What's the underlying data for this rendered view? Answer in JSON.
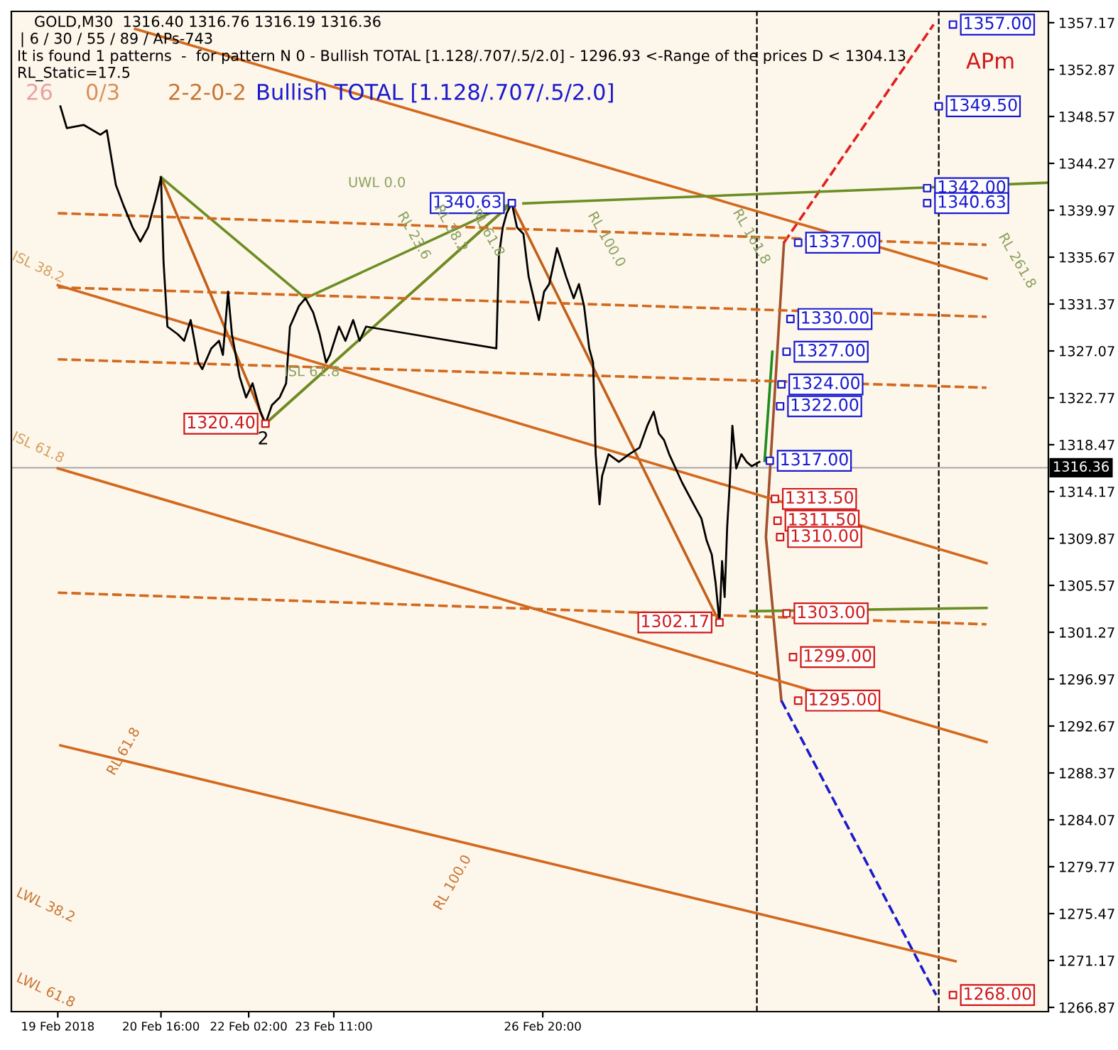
{
  "chart_data": {
    "type": "line",
    "xlim": [
      "2018-02-18T06:00",
      "2018-03-07T00:00"
    ],
    "ylim": [
      1266.48,
      1358.21
    ],
    "xticks": [
      {
        "value": "2018-02-19T00:00",
        "label": "19 Feb 2018"
      },
      {
        "value": "2018-02-20T16:00",
        "label": "20 Feb 16:00"
      },
      {
        "value": "2018-02-22T02:00",
        "label": "22 Feb 02:00"
      },
      {
        "value": "2018-02-23T11:00",
        "label": "23 Feb 11:00"
      },
      {
        "value": "2018-02-26T20:00",
        "label": "26 Feb 20:00"
      }
    ],
    "yticks": [
      1357.17,
      1352.87,
      1348.57,
      1344.27,
      1339.97,
      1335.67,
      1331.37,
      1327.07,
      1322.77,
      1318.47,
      1314.17,
      1309.87,
      1305.57,
      1301.27,
      1296.97,
      1292.67,
      1288.37,
      1284.07,
      1279.77,
      1275.47,
      1271.17,
      1266.87
    ],
    "series": [
      {
        "color": "#000000",
        "line_style": "solid",
        "x": [
          "2018-02-19T01:00",
          "2018-02-19T03:30",
          "2018-02-19T10:00",
          "2018-02-19T16:30",
          "2018-02-19T19:00",
          "2018-02-19T22:30",
          "2018-02-20T01:30",
          "2018-02-20T05:00",
          "2018-02-20T08:00",
          "2018-02-20T11:00",
          "2018-02-20T14:00",
          "2018-02-20T16:00",
          "2018-02-20T17:00",
          "2018-02-20T18:30",
          "2018-02-20T22:30",
          "2018-02-21T01:00",
          "2018-02-21T03:30",
          "2018-02-21T06:30",
          "2018-02-21T08:00",
          "2018-02-21T11:30",
          "2018-02-21T14:30",
          "2018-02-21T16:00",
          "2018-02-21T18:00",
          "2018-02-21T19:30",
          "2018-02-21T22:30",
          "2018-02-22T01:00",
          "2018-02-22T03:30",
          "2018-02-22T06:30",
          "2018-02-22T08:30",
          "2018-02-22T11:00",
          "2018-02-22T14:00",
          "2018-02-22T16:30",
          "2018-02-22T18:00",
          "2018-02-22T21:30",
          "2018-02-23T00:00",
          "2018-02-23T03:00",
          "2018-02-23T05:30",
          "2018-02-23T08:00",
          "2018-02-23T09:30",
          "2018-02-23T13:00",
          "2018-02-23T15:30",
          "2018-02-23T18:30",
          "2018-02-23T21:00",
          "2018-02-23T23:30",
          "2018-02-26T02:00",
          "2018-02-26T03:00",
          "2018-02-26T04:30",
          "2018-02-26T06:00",
          "2018-02-26T08:00",
          "2018-02-26T10:00",
          "2018-02-26T12:30",
          "2018-02-26T14:30",
          "2018-02-26T16:30",
          "2018-02-26T18:30",
          "2018-02-26T20:30",
          "2018-02-26T22:30",
          "2018-02-27T01:30",
          "2018-02-27T02:30",
          "2018-02-27T05:00",
          "2018-02-27T08:00",
          "2018-02-27T10:00",
          "2018-02-27T12:00",
          "2018-02-27T14:00",
          "2018-02-27T15:30",
          "2018-02-27T16:30",
          "2018-02-27T18:00",
          "2018-02-27T19:00",
          "2018-02-27T21:30",
          "2018-02-28T01:30",
          "2018-02-28T05:30",
          "2018-02-28T09:30",
          "2018-02-28T12:30",
          "2018-02-28T15:00",
          "2018-02-28T17:00",
          "2018-02-28T19:00",
          "2018-02-28T21:00",
          "2018-02-28T23:30",
          "2018-03-01T02:00",
          "2018-03-01T06:30",
          "2018-03-01T09:30",
          "2018-03-01T11:30",
          "2018-03-01T13:30",
          "2018-03-01T15:00",
          "2018-03-01T16:30",
          "2018-03-01T17:30",
          "2018-03-01T18:30",
          "2018-03-01T19:30",
          "2018-03-01T20:30",
          "2018-03-01T21:30",
          "2018-03-01T23:00",
          "2018-03-02T01:00",
          "2018-03-02T03:00",
          "2018-03-02T05:00",
          "2018-03-02T08:00"
        ],
        "values": [
          1349.5,
          1347.5,
          1347.8,
          1346.9,
          1347.3,
          1342.3,
          1340.4,
          1338.4,
          1337.1,
          1338.4,
          1341.0,
          1343.0,
          1335.2,
          1329.3,
          1328.6,
          1328.0,
          1329.9,
          1326.0,
          1325.4,
          1327.3,
          1328.0,
          1326.7,
          1332.5,
          1328.6,
          1324.7,
          1322.8,
          1324.1,
          1321.5,
          1320.4,
          1322.1,
          1322.8,
          1324.1,
          1329.3,
          1331.2,
          1331.9,
          1330.6,
          1328.6,
          1326.0,
          1326.7,
          1329.3,
          1328.0,
          1329.9,
          1328.0,
          1329.3,
          1327.3,
          1335.8,
          1338.4,
          1339.7,
          1340.63,
          1338.4,
          1337.8,
          1333.9,
          1331.9,
          1329.9,
          1332.5,
          1333.2,
          1336.5,
          1335.8,
          1333.9,
          1331.9,
          1333.2,
          1331.2,
          1327.3,
          1326.0,
          1317.6,
          1313.0,
          1315.6,
          1317.6,
          1316.9,
          1317.6,
          1318.2,
          1320.2,
          1321.5,
          1319.5,
          1318.9,
          1317.6,
          1316.3,
          1315.0,
          1313.0,
          1311.7,
          1309.7,
          1308.4,
          1305.8,
          1302.17,
          1307.8,
          1304.5,
          1311.0,
          1315.0,
          1320.2,
          1316.3,
          1317.6,
          1316.9,
          1316.5,
          1316.9
        ]
      },
      {
        "color": "#c0601a",
        "line_style": "solid",
        "x": [
          "2018-02-20T16:00",
          "2018-02-22T08:30",
          "2018-02-26T08:00",
          "2018-03-01T16:30"
        ],
        "values": [
          1343.0,
          1320.4,
          1340.63,
          1302.17
        ]
      },
      {
        "color": "#6b8e23",
        "line_style": "solid",
        "x": [
          "2018-02-20T16:00",
          "2018-02-23T00:00",
          "2018-02-26T08:00"
        ],
        "values": [
          1343.0,
          1331.9,
          1340.63
        ]
      },
      {
        "color": "#6b8e23",
        "line_style": "solid",
        "x": [
          "2018-02-22T08:30",
          "2018-02-26T08:00"
        ],
        "values": [
          1320.4,
          1340.63
        ]
      },
      {
        "color": "#a0522d",
        "line_style": "solid",
        "x": [
          "2018-03-02T16:30",
          "2018-03-02T10:30",
          "2018-03-02T17:30"
        ],
        "values": [
          1295.0,
          1310.0,
          1337.0
        ]
      },
      {
        "color": "#e02020",
        "line_style": "dashed",
        "x": [
          "2018-03-02T17:30",
          "2018-03-05T03:30"
        ],
        "values": [
          1337.0,
          1357.0
        ]
      },
      {
        "color": "#1a1acd",
        "line_style": "dashed",
        "x": [
          "2018-03-02T16:30",
          "2018-03-05T04:30"
        ],
        "values": [
          1295.0,
          1268.0
        ]
      },
      {
        "color": "#1e8c1e",
        "line_style": "solid",
        "x": [
          "2018-03-02T10:00",
          "2018-03-02T13:00"
        ],
        "values": [
          1317.0,
          1327.0
        ]
      },
      {
        "color": "#d2691e",
        "line_style": "solid",
        "x": [
          "2018-02-20T06:00",
          "2018-03-06T00:00"
        ],
        "values": [
          1356.6,
          1333.7
        ]
      },
      {
        "color": "#d2691e",
        "line_style": "solid",
        "x": [
          "2018-02-19T00:00",
          "2018-03-06T00:00"
        ],
        "values": [
          1333.1,
          1307.6
        ]
      },
      {
        "color": "#d2691e",
        "line_style": "solid",
        "x": [
          "2018-02-19T00:00",
          "2018-03-06T00:00"
        ],
        "values": [
          1316.3,
          1291.2
        ]
      },
      {
        "color": "#d2691e",
        "line_style": "solid",
        "x": [
          "2018-02-19T01:00",
          "2018-03-05T12:00"
        ],
        "values": [
          1290.9,
          1271.1
        ]
      },
      {
        "color": "#d2691e",
        "line_style": "dashed",
        "x": [
          "2018-02-19T00:00",
          "2018-03-06T00:00"
        ],
        "values": [
          1339.7,
          1336.8
        ]
      },
      {
        "color": "#d2691e",
        "line_style": "dashed",
        "x": [
          "2018-02-19T00:00",
          "2018-03-06T00:00"
        ],
        "values": [
          1332.9,
          1330.2
        ]
      },
      {
        "color": "#d2691e",
        "line_style": "dashed",
        "x": [
          "2018-02-19T00:00",
          "2018-03-06T00:00"
        ],
        "values": [
          1326.3,
          1323.7
        ]
      },
      {
        "color": "#d2691e",
        "line_style": "dashed",
        "x": [
          "2018-02-19T00:00",
          "2018-03-06T00:00"
        ],
        "values": [
          1304.9,
          1302.0
        ]
      },
      {
        "color": "#6b8e23",
        "line_style": "solid",
        "x": [
          "2018-02-26T12:30",
          "2018-03-07T00:00"
        ],
        "values": [
          1340.6,
          1342.5
        ]
      },
      {
        "color": "#6b8e23",
        "line_style": "solid",
        "x": [
          "2018-03-02T04:30",
          "2018-03-06T00:00"
        ],
        "values": [
          1303.2,
          1303.5
        ]
      },
      {
        "type": "scatter",
        "color": "#1a1acd",
        "marker": "square",
        "x": [
          "2018-03-05T11:00",
          "2018-03-05T05:30",
          "2018-03-05T01:00",
          "2018-03-05T01:00",
          "2018-03-02T23:00",
          "2018-03-02T20:00",
          "2018-03-02T18:30",
          "2018-03-02T16:30",
          "2018-03-02T16:00",
          "2018-03-02T12:00"
        ],
        "values": [
          1357.0,
          1349.5,
          1342.0,
          1340.63,
          1337.0,
          1330.0,
          1327.0,
          1324.0,
          1322.0,
          1317.0
        ],
        "value_labels": [
          "1357.00",
          "1349.50",
          "1342.00",
          "1340.63",
          "1337.00",
          "1330.00",
          "1327.00",
          "1324.00",
          "1322.00",
          "1317.00"
        ]
      },
      {
        "type": "scatter",
        "color": "#d01818",
        "marker": "square",
        "x": [
          "2018-03-02T14:00",
          "2018-03-02T15:00",
          "2018-03-02T16:00",
          "2018-03-02T18:30",
          "2018-03-02T21:00",
          "2018-03-02T23:00",
          "2018-03-05T11:00"
        ],
        "values": [
          1313.5,
          1311.5,
          1310.0,
          1303.0,
          1299.0,
          1295.0,
          1268.0
        ],
        "value_labels": [
          "1313.50",
          "1311.50",
          "1310.00",
          "1303.00",
          "1299.00",
          "1295.00",
          "1268.00"
        ]
      },
      {
        "type": "scatter",
        "color": "#1a1acd",
        "marker": "square",
        "x": [
          "2018-02-26T08:00"
        ],
        "values": [
          1340.63
        ],
        "value_labels": [
          "1340.63"
        ]
      },
      {
        "type": "scatter",
        "color": "#d01818",
        "marker": "square",
        "x": [
          "2018-02-22T08:30",
          "2018-03-01T16:30"
        ],
        "values": [
          1320.4,
          1302.17
        ],
        "value_labels": [
          "1320.40",
          "1302.17"
        ]
      }
    ],
    "ref_lines": [
      {
        "axis": "x",
        "value": "2018-03-02T07:00",
        "line_style": "dashed",
        "color": "#000000"
      },
      {
        "axis": "x",
        "value": "2018-03-05T05:30",
        "line_style": "dashed",
        "color": "#000000"
      },
      {
        "axis": "y",
        "value": 1316.36,
        "label": "1316.36",
        "line_style": "solid",
        "color": "#b0b0b0"
      }
    ],
    "annotations": [
      "GOLD,M30  1316.40 1316.76 1316.19 1316.36",
      "| 6 / 30 / 55 / 89 / APs-743",
      "It is found 1 patterns  -  for pattern N 0 - Bullish TOTAL [1.128/.707/.5/2.0] - 1296.93 <-Range of the prices D < 1304.13",
      "RL_Static=17.5",
      "26",
      "0/3",
      "2-2-0-2",
      "Bullish TOTAL [1.128/.707/.5/2.0]",
      "APm",
      "UWL 0.0",
      "ISL 61.8",
      "ISL 38.2",
      "ISL 61.8",
      "RL 61.8",
      "RL 100.0",
      "LWL 38.2",
      "LWL 61.8",
      "RL 23.6",
      "RL 38.2",
      "RL 61.8",
      "RL 100.0",
      "RL 161.8",
      "RL 261.8",
      {
        "text": "2",
        "x": "2018-02-22T08:30",
        "y": 1320.4
      }
    ]
  }
}
